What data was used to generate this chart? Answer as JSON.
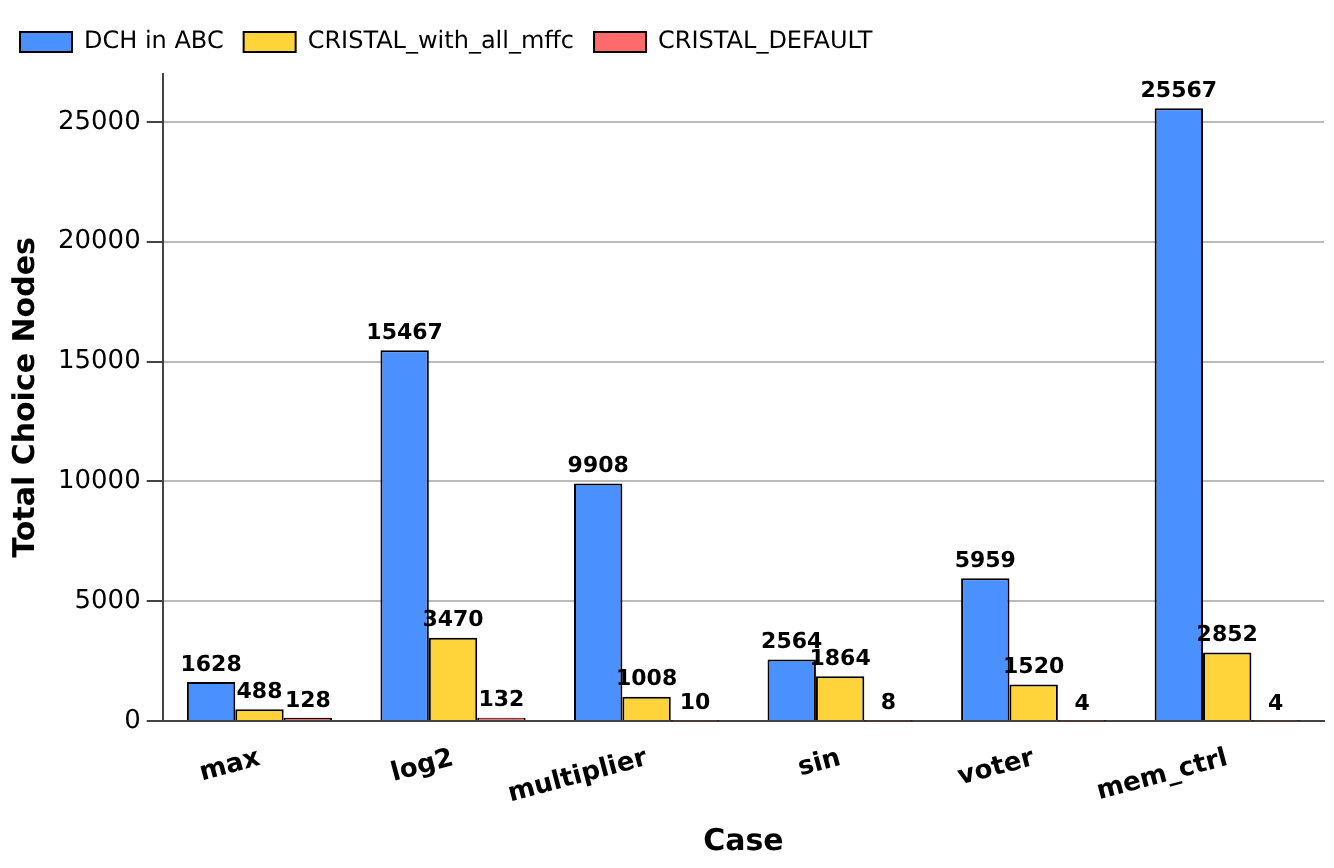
{
  "chart_data": {
    "type": "bar",
    "xlabel": "Case",
    "ylabel": "Total Choice Nodes",
    "categories": [
      "max",
      "log2",
      "multiplier",
      "sin",
      "voter",
      "mem_ctrl"
    ],
    "series": [
      {
        "name": "DCH in ABC",
        "color": "#4a90ff",
        "values": [
          1628,
          15467,
          9908,
          2564,
          5959,
          25567
        ]
      },
      {
        "name": "CRISTAL_with_all_mffc",
        "color": "#ffd43b",
        "values": [
          488,
          3470,
          1008,
          1864,
          1520,
          2852
        ]
      },
      {
        "name": "CRISTAL_DEFAULT",
        "color": "#ff6b6b",
        "values": [
          128,
          132,
          10,
          8,
          4,
          4
        ]
      }
    ],
    "ylim": [
      0,
      27000
    ],
    "yticks": [
      0,
      5000,
      10000,
      15000,
      20000,
      25000
    ],
    "grid": "y",
    "legend": "top left",
    "data_labels": true
  }
}
